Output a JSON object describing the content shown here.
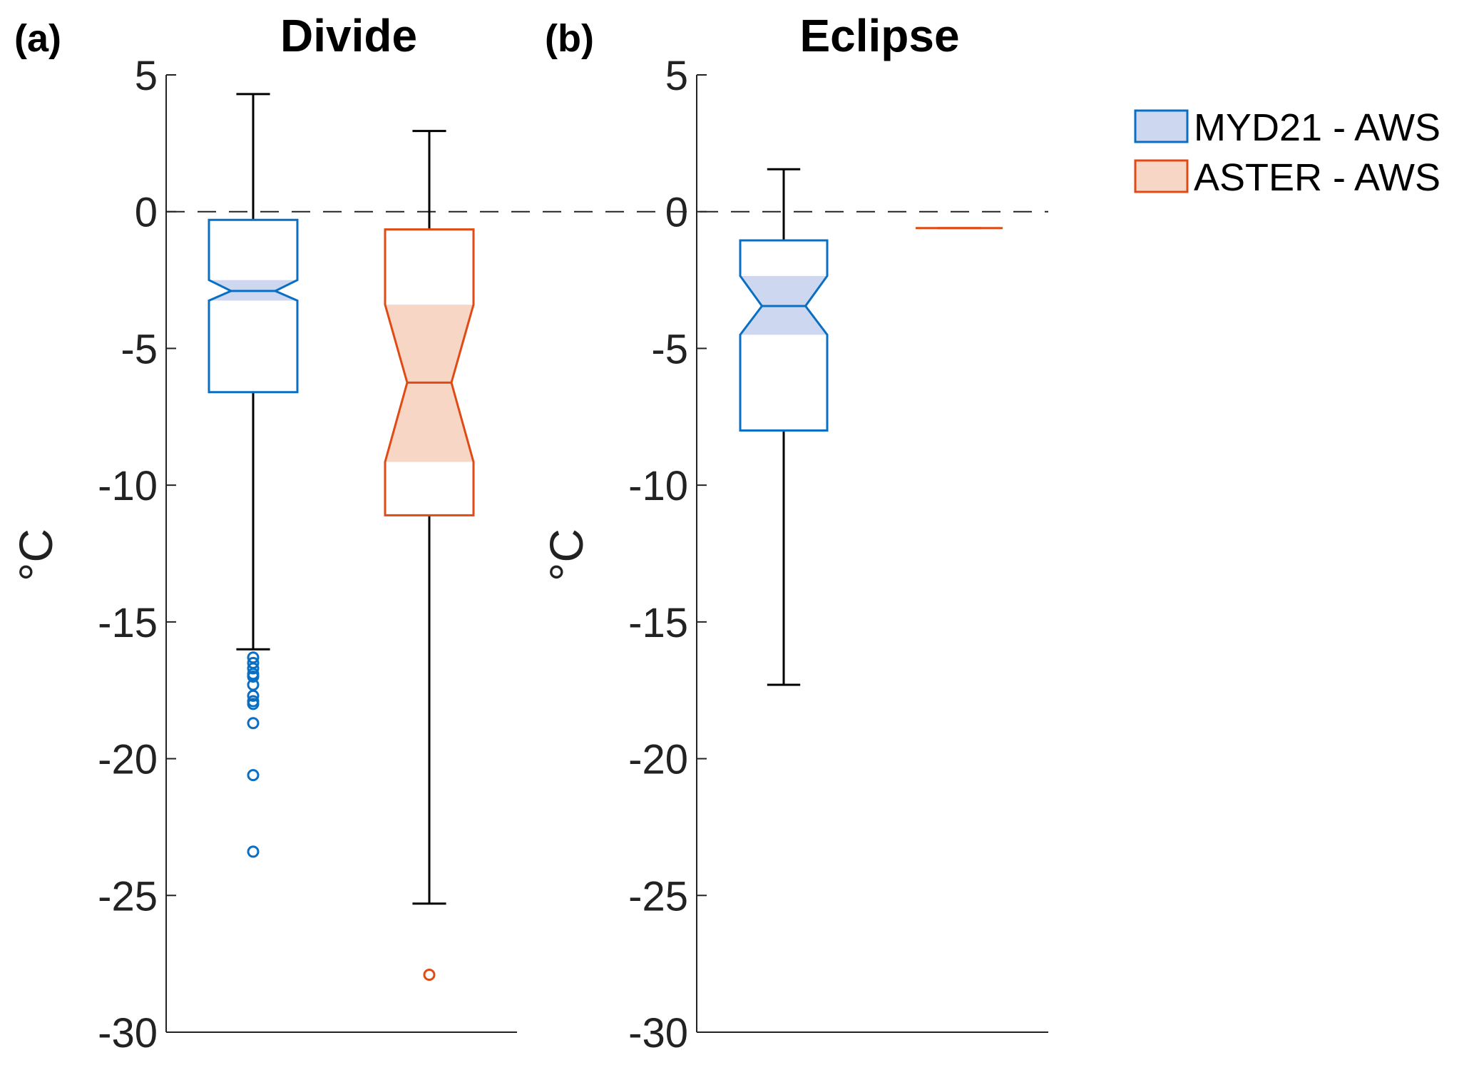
{
  "chart_data": [
    {
      "type": "boxplot",
      "panel_label": "(a)",
      "title": "Divide",
      "ylabel": "°C",
      "ylim": [
        -30,
        5
      ],
      "yticks": [
        5,
        0,
        -5,
        -10,
        -15,
        -20,
        -25,
        -30
      ],
      "reference_line": 0,
      "notched": true,
      "series": [
        {
          "name": "MYD21 - AWS",
          "whisker_high": 4.3,
          "q3": -0.3,
          "notch_high": -2.5,
          "median": -2.9,
          "notch_low": -3.25,
          "q1": -6.6,
          "whisker_low": -16.0,
          "outliers": [
            -16.3,
            -16.5,
            -16.7,
            -16.9,
            -17.0,
            -17.3,
            -17.7,
            -17.9,
            -18.0,
            -18.7,
            -20.6,
            -23.4
          ]
        },
        {
          "name": "ASTER - AWS",
          "whisker_high": 2.95,
          "q3": -0.65,
          "notch_high": -3.4,
          "median": -6.25,
          "notch_low": -9.15,
          "q1": -11.1,
          "whisker_low": -25.3,
          "outliers": [
            -27.9
          ]
        }
      ]
    },
    {
      "type": "boxplot",
      "panel_label": "(b)",
      "title": "Eclipse",
      "ylabel": "°C",
      "ylim": [
        -30,
        5
      ],
      "yticks": [
        5,
        0,
        -5,
        -10,
        -15,
        -20,
        -25,
        -30
      ],
      "reference_line": 0,
      "notched": true,
      "series": [
        {
          "name": "MYD21 - AWS",
          "whisker_high": 1.55,
          "q3": -1.05,
          "notch_high": -2.35,
          "median": -3.45,
          "notch_low": -4.5,
          "q1": -8.0,
          "whisker_low": -17.3,
          "outliers": []
        },
        {
          "name": "ASTER - AWS",
          "whisker_high": -0.6,
          "q3": -0.6,
          "notch_high": -0.6,
          "median": -0.6,
          "notch_low": -0.6,
          "q1": -0.6,
          "whisker_low": -0.6,
          "outliers": []
        }
      ]
    }
  ],
  "legend": {
    "placement": "top-right",
    "items": [
      {
        "label": "MYD21 - AWS",
        "edge": "#0a6fc2",
        "fill": "#cdd7f0"
      },
      {
        "label": "ASTER - AWS",
        "edge": "#e04a14",
        "fill": "#f8d6c6"
      }
    ]
  },
  "colors": {
    "myd21": "#0a6fc2",
    "aster": "#e04a14",
    "myd21_notch": "#cdd7f0",
    "aster_notch": "#f8d6c6"
  }
}
